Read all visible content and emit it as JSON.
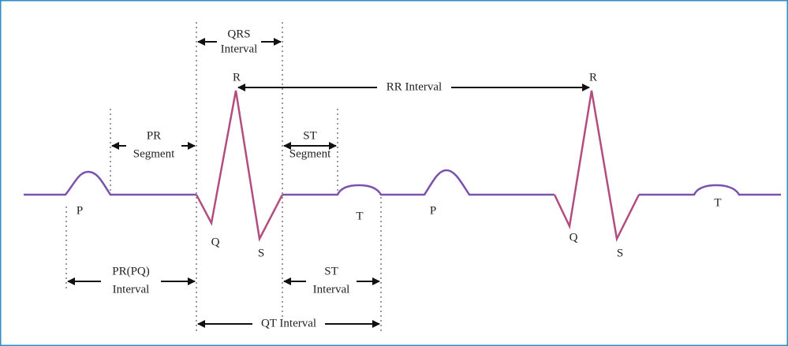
{
  "waves": [
    {
      "label": "P"
    },
    {
      "label": "Q"
    },
    {
      "label": "R"
    },
    {
      "label": "S"
    },
    {
      "label": "T"
    },
    {
      "label": "P"
    },
    {
      "label": "Q"
    },
    {
      "label": "R"
    },
    {
      "label": "S"
    },
    {
      "label": "T"
    }
  ],
  "intervals": [
    {
      "lines": [
        "QRS",
        "Interval"
      ]
    },
    {
      "lines": [
        "PR",
        "Segment"
      ]
    },
    {
      "lines": [
        "ST",
        "Segment"
      ]
    },
    {
      "lines": [
        "RR Interval"
      ]
    },
    {
      "lines": [
        "PR(PQ)",
        "Interval"
      ]
    },
    {
      "lines": [
        "ST",
        "Interval"
      ]
    },
    {
      "lines": [
        "QT Interval"
      ]
    }
  ]
}
